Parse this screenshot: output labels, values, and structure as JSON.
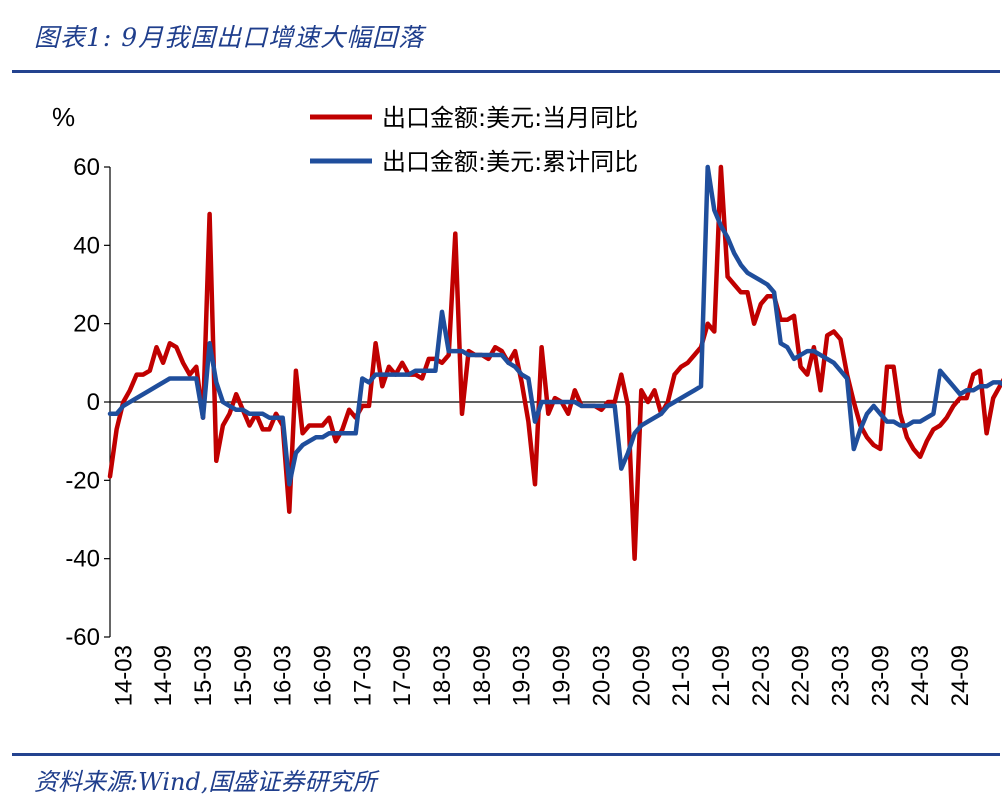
{
  "figure": {
    "title": "图表1:  9月我国出口增速大幅回落",
    "source": "资料来源:Wind,国盛证券研究所"
  },
  "colors": {
    "rule": "#23438f",
    "title": "#1f3e8c",
    "series1": "#c00000",
    "series2": "#1f4e9c"
  },
  "chart_data": {
    "type": "line",
    "ylabel": "%",
    "ylim": [
      -60,
      60
    ],
    "yticks": [
      60,
      40,
      20,
      0,
      -20,
      -40,
      -60
    ],
    "xticks": [
      "14-03",
      "14-09",
      "15-03",
      "15-09",
      "16-03",
      "16-09",
      "17-03",
      "17-09",
      "18-03",
      "18-09",
      "19-03",
      "19-09",
      "20-03",
      "20-09",
      "21-03",
      "21-09",
      "22-03",
      "22-09",
      "23-03",
      "23-09",
      "24-03",
      "24-09"
    ],
    "x_start": "14-01",
    "x_end": "24-09",
    "grid": false,
    "legend_position": "top",
    "series": [
      {
        "name": "出口金额:美元:当月同比",
        "color": "#c00000",
        "values": [
          -19,
          -7,
          0,
          3,
          7,
          7,
          8,
          14,
          10,
          15,
          14,
          10,
          7,
          9,
          -4,
          48,
          -15,
          -6,
          -3,
          2,
          -2,
          -6,
          -3,
          -7,
          -7,
          -3,
          -6,
          -28,
          8,
          -8,
          -6,
          -6,
          -6,
          -4,
          -10,
          -7,
          -2,
          -4,
          -1,
          -1,
          15,
          4,
          9,
          7,
          10,
          7,
          7,
          6,
          11,
          11,
          10,
          12,
          43,
          -3,
          13,
          12,
          12,
          11,
          14,
          13,
          10,
          13,
          5,
          -5,
          -21,
          14,
          -3,
          1,
          0,
          -3,
          3,
          -1,
          -1,
          -1,
          -2,
          0,
          0,
          7,
          -1,
          -40,
          3,
          0,
          3,
          -3,
          0,
          7,
          9,
          10,
          12,
          14,
          20,
          18,
          60,
          32,
          30,
          28,
          28,
          20,
          25,
          27,
          27,
          21,
          21,
          22,
          9,
          7,
          14,
          3,
          17,
          18,
          16,
          7,
          0,
          -6,
          -9,
          -11,
          -12,
          9,
          9,
          -3,
          -9,
          -12,
          -14,
          -10,
          -7,
          -6,
          -4,
          -1,
          1,
          1,
          7,
          8,
          -8,
          1,
          4,
          7,
          8,
          7,
          9,
          2
        ]
      },
      {
        "name": "出口金额:美元:累计同比",
        "color": "#1f4e9c",
        "values": [
          -3,
          -3,
          -1,
          0,
          1,
          2,
          3,
          4,
          5,
          6,
          6,
          6,
          6,
          6,
          -4,
          15,
          5,
          0,
          -1,
          -2,
          -2,
          -3,
          -3,
          -3,
          -4,
          -4,
          -4,
          -21,
          -13,
          -11,
          -10,
          -9,
          -9,
          -8,
          -8,
          -8,
          -8,
          -8,
          6,
          5,
          7,
          7,
          7,
          7,
          7,
          7,
          8,
          8,
          8,
          8,
          23,
          13,
          13,
          13,
          12,
          12,
          12,
          12,
          12,
          12,
          10,
          9,
          7,
          6,
          -5,
          0,
          0,
          0,
          0,
          0,
          0,
          -1,
          -1,
          -1,
          -1,
          -1,
          -1,
          -17,
          -13,
          -8,
          -6,
          -5,
          -4,
          -3,
          -1,
          0,
          1,
          2,
          3,
          4,
          60,
          49,
          45,
          42,
          38,
          35,
          33,
          32,
          31,
          30,
          28,
          15,
          14,
          11,
          12,
          13,
          13,
          12,
          11,
          10,
          8,
          6,
          -12,
          -7,
          -3,
          -1,
          -3,
          -5,
          -5,
          -6,
          -6,
          -5,
          -5,
          -4,
          -3,
          8,
          6,
          4,
          2,
          3,
          3,
          4,
          4,
          5,
          5,
          4
        ]
      }
    ]
  }
}
